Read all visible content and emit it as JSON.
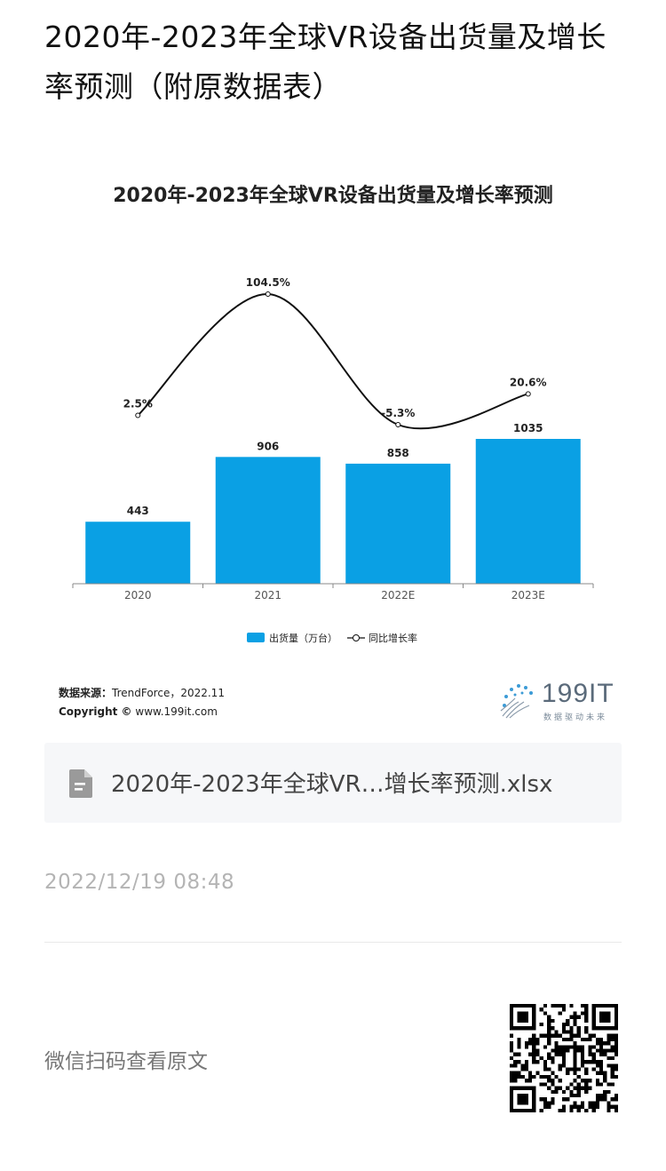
{
  "article": {
    "title": "2020年-2023年全球VR设备出货量及增长率预测（附原数据表）"
  },
  "chart_data": {
    "type": "bar",
    "title": "2020年-2023年全球VR设备出货量及增长率预测",
    "categories": [
      "2020",
      "2021",
      "2022E",
      "2023E"
    ],
    "series": [
      {
        "name": "出货量（万台）",
        "type": "bar",
        "values": [
          443,
          906,
          858,
          1035
        ],
        "labels": [
          "443",
          "906",
          "858",
          "1035"
        ],
        "color": "#0aa0e4"
      },
      {
        "name": "同比增长率",
        "type": "line",
        "values": [
          2.5,
          104.5,
          -5.3,
          20.6
        ],
        "labels": [
          "2.5%",
          "104.5%",
          "-5.3%",
          "20.6%"
        ],
        "color": "#111111"
      }
    ],
    "legend": {
      "position": "bottom-center",
      "bar_label": "出货量（万台）",
      "line_label": "同比增长率"
    },
    "grid": false
  },
  "source": {
    "label": "数据来源：",
    "value": "TrendForce，2022.11",
    "copyright_label": "Copyright ©",
    "copyright_value": "www.199it.com"
  },
  "logo": {
    "text": "199IT",
    "tagline": "数据驱动未来"
  },
  "attachment": {
    "icon": "document-icon",
    "filename": "2020年-2023年全球VR…增长率预测.xlsx"
  },
  "timestamp": "2022/12/19 08:48",
  "footer": {
    "scan_text": "微信扫码查看原文",
    "qr_icon": "qr-code-icon"
  },
  "colors": {
    "bar": "#0aa0e4",
    "line": "#111111",
    "muted_text": "#b4b4b4",
    "card_bg": "#f6f7f9"
  }
}
